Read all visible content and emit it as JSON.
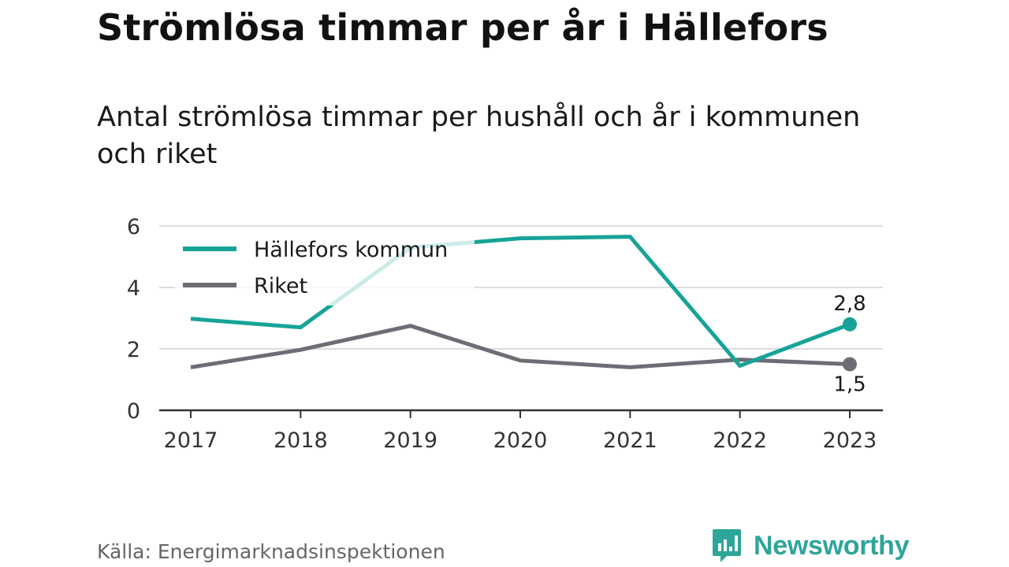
{
  "title": "Strömlösa timmar per år i Hällefors",
  "subtitle": "Antal strömlösa timmar per hushåll och år i kommunen och riket",
  "source": "Källa: Energimarknadsinspektionen",
  "brand": {
    "name": "Newsworthy",
    "icon": "newsworthy-logo-icon",
    "color": "#2ea59a"
  },
  "chart_data": {
    "type": "line",
    "x": [
      "2017",
      "2018",
      "2019",
      "2020",
      "2021",
      "2022",
      "2023"
    ],
    "ylim": [
      0,
      6
    ],
    "yticks": [
      "0",
      "2",
      "4",
      "6"
    ],
    "grid": true,
    "legend_position": "top-left",
    "series": [
      {
        "name": "Hällefors kommun",
        "color": "#17a398",
        "values": [
          2.98,
          2.7,
          5.3,
          5.6,
          5.65,
          1.45,
          2.8
        ],
        "end_label": "2,8",
        "end_label_position": "above"
      },
      {
        "name": "Riket",
        "color": "#6e6d75",
        "values": [
          1.4,
          1.97,
          2.75,
          1.62,
          1.4,
          1.65,
          1.5
        ],
        "end_label": "1,5",
        "end_label_position": "below"
      }
    ]
  }
}
